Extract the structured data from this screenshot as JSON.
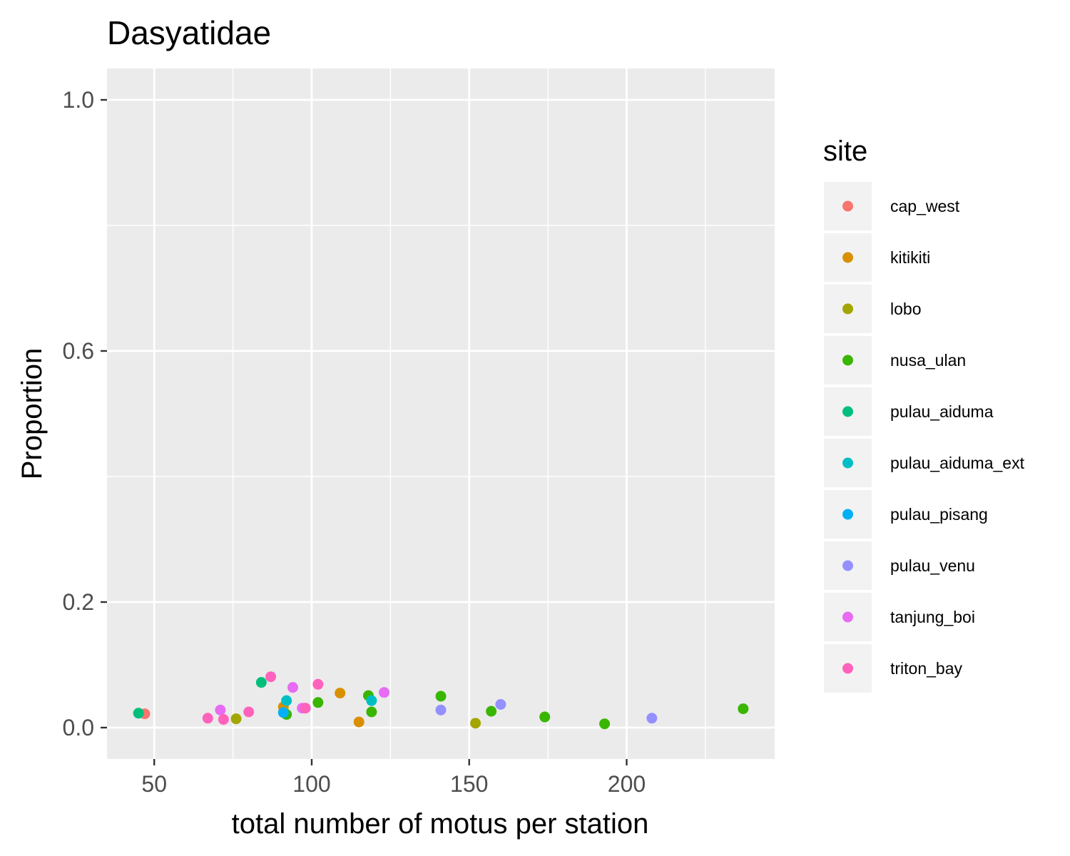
{
  "chart_data": {
    "type": "scatter",
    "title": "Dasyatidae",
    "xlabel": "total number of motus per station",
    "ylabel": "Proportion",
    "xlim": [
      35,
      247
    ],
    "ylim": [
      -0.05,
      1.05
    ],
    "x_ticks": [
      50,
      100,
      150,
      200
    ],
    "x_tick_labels": [
      "50",
      "100",
      "150",
      "200"
    ],
    "y_ticks": [
      0.0,
      0.2,
      0.6,
      1.0
    ],
    "y_tick_labels": [
      "0.0",
      "0.2",
      "0.6",
      "1.0"
    ],
    "y_minor_gridlines": [
      0.4,
      0.8
    ],
    "x_minor_gridlines": [
      25,
      75,
      125,
      175,
      225
    ],
    "grid": true,
    "panel_background": "#ebebeb",
    "legend": {
      "title": "site",
      "position": "right"
    },
    "series": [
      {
        "name": "cap_west",
        "color": "#F8766D",
        "points": [
          [
            47,
            0.022
          ]
        ]
      },
      {
        "name": "kitikiti",
        "color": "#D89000",
        "points": [
          [
            91,
            0.033
          ],
          [
            109,
            0.055
          ],
          [
            115,
            0.009
          ]
        ]
      },
      {
        "name": "lobo",
        "color": "#A3A500",
        "points": [
          [
            76,
            0.014
          ],
          [
            152,
            0.007
          ]
        ]
      },
      {
        "name": "nusa_ulan",
        "color": "#39B600",
        "points": [
          [
            92,
            0.021
          ],
          [
            102,
            0.04
          ],
          [
            118,
            0.051
          ],
          [
            119,
            0.025
          ],
          [
            141,
            0.05
          ],
          [
            157,
            0.026
          ],
          [
            174,
            0.017
          ],
          [
            193,
            0.006
          ],
          [
            237,
            0.03
          ]
        ]
      },
      {
        "name": "pulau_aiduma",
        "color": "#00BF7D",
        "points": [
          [
            45,
            0.023
          ],
          [
            84,
            0.072
          ]
        ]
      },
      {
        "name": "pulau_aiduma_ext",
        "color": "#00BFC4",
        "points": [
          [
            92,
            0.043
          ],
          [
            119,
            0.043
          ]
        ]
      },
      {
        "name": "pulau_pisang",
        "color": "#00B0F6",
        "points": [
          [
            91,
            0.024
          ]
        ]
      },
      {
        "name": "pulau_venu",
        "color": "#9590FF",
        "points": [
          [
            141,
            0.028
          ],
          [
            160,
            0.037
          ],
          [
            208,
            0.015
          ]
        ]
      },
      {
        "name": "tanjung_boi",
        "color": "#E76BF3",
        "points": [
          [
            71,
            0.028
          ],
          [
            94,
            0.064
          ],
          [
            97,
            0.031
          ],
          [
            123,
            0.056
          ]
        ]
      },
      {
        "name": "triton_bay",
        "color": "#FF62BC",
        "points": [
          [
            67,
            0.015
          ],
          [
            72,
            0.013
          ],
          [
            80,
            0.025
          ],
          [
            87,
            0.081
          ],
          [
            98,
            0.031
          ],
          [
            102,
            0.069
          ]
        ]
      }
    ]
  }
}
